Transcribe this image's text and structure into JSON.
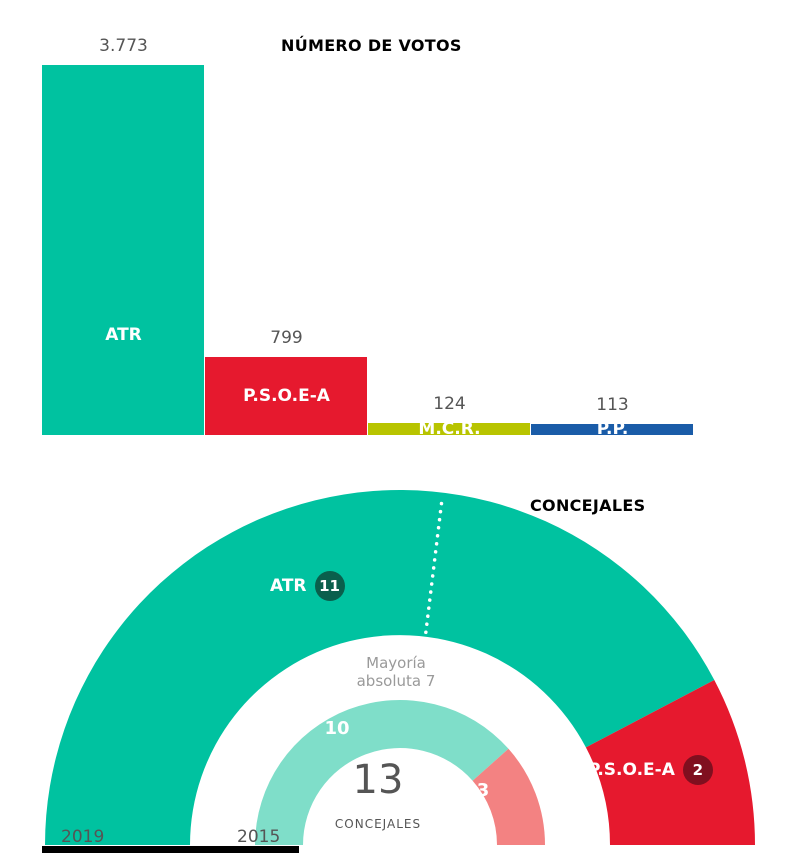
{
  "chart_data": [
    {
      "type": "bar",
      "title": "NÚMERO DE VOTOS",
      "categories": [
        "ATR",
        "P.S.O.E-A",
        "M.C.R.",
        "P.P."
      ],
      "values": [
        3773,
        799,
        124,
        113
      ],
      "value_labels": [
        "3.773",
        "799",
        "124",
        "113"
      ],
      "bar_colors": [
        "#00c2a0",
        "#e6192e",
        "#b8c400",
        "#1a5ca8"
      ],
      "ylim": [
        0,
        3773
      ],
      "grid": false,
      "legend": false
    },
    {
      "type": "half-donut",
      "title": "CONCEJALES",
      "total_seats": 13,
      "total_seats_label": "13",
      "center_caption": "CONCEJALES",
      "majority": 7,
      "majority_note": [
        "Mayoría",
        "absoluta 7"
      ],
      "rings": [
        {
          "year": "2019",
          "segments": [
            {
              "name": "ATR",
              "seats": 11,
              "color": "#00c2a0"
            },
            {
              "name": "P.S.O.E-A",
              "seats": 2,
              "color": "#e6192e"
            }
          ]
        },
        {
          "year": "2015",
          "segments": [
            {
              "seats": 10,
              "color": "#7fdec9"
            },
            {
              "seats": 3,
              "color": "#f38282"
            }
          ]
        }
      ],
      "badges": [
        {
          "label": "ATR",
          "value": "11",
          "bg": "#0a5f4c"
        },
        {
          "label": "P.S.O.E-A",
          "value": "2",
          "bg": "#800f1f"
        }
      ],
      "inner_counts": [
        "10",
        "3"
      ]
    }
  ]
}
